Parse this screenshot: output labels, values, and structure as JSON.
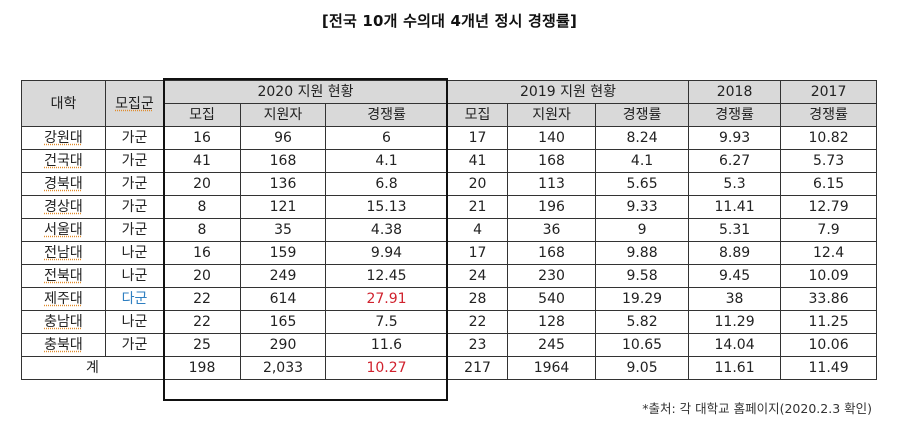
{
  "title": "[전국 10개 수의대 4개년 정시 경쟁률]",
  "header": {
    "university": "대학",
    "group": "모집군",
    "y2020": "2020 지원 현황",
    "y2019": "2019 지원 현황",
    "y2018": "2018",
    "y2017": "2017",
    "recruit": "모집",
    "applicants": "지원자",
    "ratio": "경쟁률"
  },
  "rows": [
    {
      "univ": "강원대",
      "group": "가군",
      "r20": "16",
      "a20": "96",
      "c20": "6",
      "r19": "17",
      "a19": "140",
      "c19": "8.24",
      "c18": "9.93",
      "c17": "10.82"
    },
    {
      "univ": "건국대",
      "group": "가군",
      "r20": "41",
      "a20": "168",
      "c20": "4.1",
      "r19": "41",
      "a19": "168",
      "c19": "4.1",
      "c18": "6.27",
      "c17": "5.73"
    },
    {
      "univ": "경북대",
      "group": "가군",
      "r20": "20",
      "a20": "136",
      "c20": "6.8",
      "r19": "20",
      "a19": "113",
      "c19": "5.65",
      "c18": "5.3",
      "c17": "6.15"
    },
    {
      "univ": "경상대",
      "group": "가군",
      "r20": "8",
      "a20": "121",
      "c20": "15.13",
      "r19": "21",
      "a19": "196",
      "c19": "9.33",
      "c18": "11.41",
      "c17": "12.79"
    },
    {
      "univ": "서울대",
      "group": "가군",
      "r20": "8",
      "a20": "35",
      "c20": "4.38",
      "r19": "4",
      "a19": "36",
      "c19": "9",
      "c18": "5.31",
      "c17": "7.9"
    },
    {
      "univ": "전남대",
      "group": "나군",
      "r20": "16",
      "a20": "159",
      "c20": "9.94",
      "r19": "17",
      "a19": "168",
      "c19": "9.88",
      "c18": "8.89",
      "c17": "12.4"
    },
    {
      "univ": "전북대",
      "group": "나군",
      "r20": "20",
      "a20": "249",
      "c20": "12.45",
      "r19": "24",
      "a19": "230",
      "c19": "9.58",
      "c18": "9.45",
      "c17": "10.09"
    },
    {
      "univ": "제주대",
      "group": "다군",
      "r20": "22",
      "a20": "614",
      "c20": "27.91",
      "r19": "28",
      "a19": "540",
      "c19": "19.29",
      "c18": "38",
      "c17": "33.86"
    },
    {
      "univ": "충남대",
      "group": "나군",
      "r20": "22",
      "a20": "165",
      "c20": "7.5",
      "r19": "22",
      "a19": "128",
      "c19": "5.82",
      "c18": "11.29",
      "c17": "11.25"
    },
    {
      "univ": "충북대",
      "group": "가군",
      "r20": "25",
      "a20": "290",
      "c20": "11.6",
      "r19": "23",
      "a19": "245",
      "c19": "10.65",
      "c18": "14.04",
      "c17": "10.06"
    }
  ],
  "total": {
    "label": "계",
    "r20": "198",
    "a20": "2,033",
    "c20": "10.27",
    "r19": "217",
    "a19": "1964",
    "c19": "9.05",
    "c18": "11.61",
    "c17": "11.49"
  },
  "source": "*출처: 각 대학교 홈페이지(2020.2.3 확인)",
  "colors": {
    "header_bg": "#d9d9d9",
    "highlight_red": "#d0222e",
    "highlight_blue": "#2f7fc1"
  }
}
